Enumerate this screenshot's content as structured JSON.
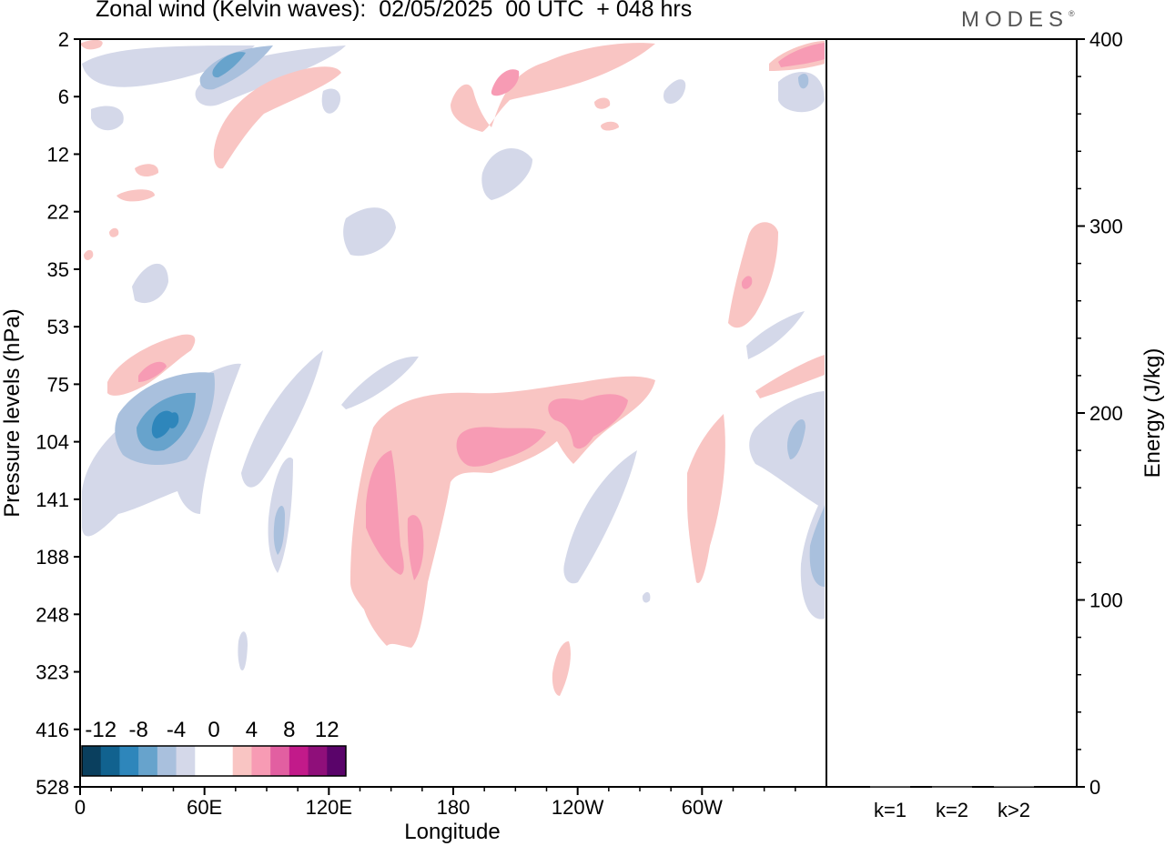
{
  "page": {
    "title": "Zonal wind (Kelvin waves):  02/05/2025  00 UTC  + 048 hrs",
    "brand": "MODES"
  },
  "chart_data": [
    {
      "type": "heatmap",
      "title": "Zonal wind (Kelvin waves):  02/05/2025  00 UTC  + 048 hrs",
      "xlabel": "Longitude",
      "ylabel": "Pressure levels (hPa)",
      "x_ticks": [
        "0",
        "60E",
        "120E",
        "180",
        "120W",
        "60W"
      ],
      "x_tick_degrees": [
        0,
        60,
        120,
        180,
        240,
        300
      ],
      "xlim": [
        0,
        360
      ],
      "y_ticks": [
        "2",
        "6",
        "12",
        "22",
        "35",
        "53",
        "75",
        "104",
        "141",
        "188",
        "248",
        "323",
        "416",
        "528"
      ],
      "y_scale": "level index (top=2 hPa, bottom=528 hPa)",
      "colorbar": {
        "labels": [
          "-12",
          "-8",
          "-4",
          "0",
          "4",
          "8",
          "12"
        ],
        "colors": [
          "#0a3f5e",
          "#11628f",
          "#2e86bb",
          "#67a3cc",
          "#a9c0dd",
          "#d4d8e9",
          "#ffffff",
          "#ffffff",
          "#f9c5c3",
          "#f79bb4",
          "#e25fa1",
          "#c21a8a",
          "#8f0f7a",
          "#5a046a"
        ]
      },
      "regions": [
        {
          "sign": "negative",
          "strength": 2,
          "lon": 40,
          "level_index": 7.0,
          "note": "strong easterly core near 40E, ~104-75 hPa"
        },
        {
          "sign": "negative",
          "strength": 1,
          "lon": 55,
          "level_index": 0.6,
          "note": "upper easterly near 50-60E, 2-6 hPa"
        },
        {
          "sign": "positive",
          "strength": 2,
          "lon": 150,
          "level_index": 9.0,
          "note": "westerly plume 140-165E, 141-248 hPa"
        },
        {
          "sign": "positive",
          "strength": 2,
          "lon": 195,
          "level_index": 7.4,
          "note": "westerly band 180-240, ~104 hPa"
        },
        {
          "sign": "positive",
          "strength": 2,
          "lon": 200,
          "level_index": 0.7,
          "note": "upper westerly near 160W, 4-6 hPa"
        },
        {
          "sign": "negative",
          "strength": 1,
          "lon": 355,
          "level_index": 9.3,
          "note": "easterly near 5W, 141-248 hPa"
        }
      ]
    },
    {
      "type": "bar",
      "ylabel": "Energy (J/kg)",
      "categories": [
        "k=1",
        "k=2",
        "k>2"
      ],
      "values": [
        0.3,
        0.2,
        0.4
      ],
      "ylim": [
        0,
        400
      ],
      "y_ticks": [
        "0",
        "100",
        "200",
        "300",
        "400"
      ]
    }
  ]
}
